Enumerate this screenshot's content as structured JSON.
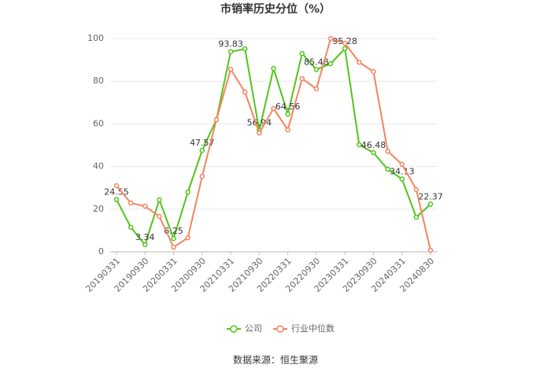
{
  "chart_data": {
    "type": "line",
    "title": "市销率历史分位（%）",
    "source": "数据来源：恒生聚源",
    "categories": [
      "20190331",
      null,
      "20190930",
      null,
      "20200331",
      null,
      "20200930",
      null,
      "20210331",
      null,
      "20210930",
      null,
      "20220331",
      null,
      "20220930",
      null,
      "20230331",
      null,
      "20230930",
      null,
      "20240331",
      null,
      "20240830"
    ],
    "series": [
      {
        "name": "公司",
        "color": "#52c41a",
        "values": [
          24.55,
          11.5,
          3.34,
          24.4,
          6.25,
          28,
          47.57,
          62,
          93.83,
          95.2,
          56.94,
          86,
          64.56,
          93,
          85.48,
          88.2,
          95.28,
          50.2,
          46.48,
          38.7,
          34.13,
          16.2,
          22.37
        ],
        "value_labels": [
          "24.55",
          null,
          "3.34",
          null,
          "6.25",
          null,
          "47.57",
          null,
          "93.83",
          null,
          "56.94",
          null,
          "64.56",
          null,
          "85.48",
          null,
          "95.28",
          null,
          "46.48",
          null,
          "34.13",
          null,
          "22.37"
        ]
      },
      {
        "name": "行业中位数",
        "color": "#f4845f",
        "values": [
          31,
          22.9,
          21.4,
          16.6,
          2.2,
          6.6,
          35.4,
          62,
          85.6,
          74.9,
          55.7,
          67.2,
          57.2,
          81.2,
          76.4,
          100,
          97.8,
          88.9,
          84.5,
          47.2,
          41,
          29.2,
          0.7
        ]
      }
    ],
    "ylim": [
      0,
      100
    ],
    "yticks": [
      0,
      20,
      40,
      60,
      80,
      100
    ],
    "grid": true,
    "legend": "bottom"
  }
}
